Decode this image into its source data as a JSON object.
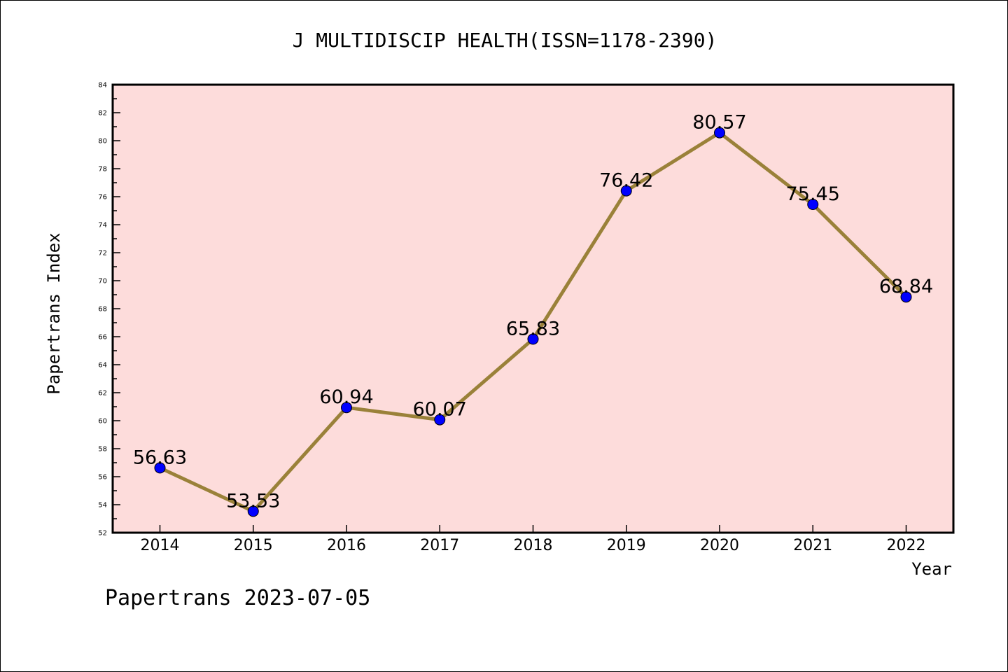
{
  "chart_data": {
    "type": "line",
    "title": "J MULTIDISCIP HEALTH(ISSN=1178-2390)",
    "xlabel": "Year",
    "ylabel": "Papertrans Index",
    "categories": [
      "2014",
      "2015",
      "2016",
      "2017",
      "2018",
      "2019",
      "2020",
      "2021",
      "2022"
    ],
    "values": [
      56.63,
      53.53,
      60.94,
      60.07,
      65.83,
      76.42,
      80.57,
      75.45,
      68.84
    ],
    "point_labels": [
      "56.63",
      "53.53",
      "60.94",
      "60.07",
      "65.83",
      "76.42",
      "80.57",
      "75.45",
      "68.84"
    ],
    "ylim": [
      52,
      84
    ],
    "y_ticks": [
      "52",
      "54",
      "56",
      "58",
      "60",
      "62",
      "64",
      "66",
      "68",
      "70",
      "72",
      "74",
      "76",
      "78",
      "80",
      "82",
      "84"
    ],
    "grid": false,
    "legend": "none",
    "footer": "Papertrans 2023-07-05",
    "colors": {
      "plot_background": "#fddcdb",
      "line": "#9a8139",
      "marker": "#0000ff",
      "text": "#000000"
    }
  }
}
